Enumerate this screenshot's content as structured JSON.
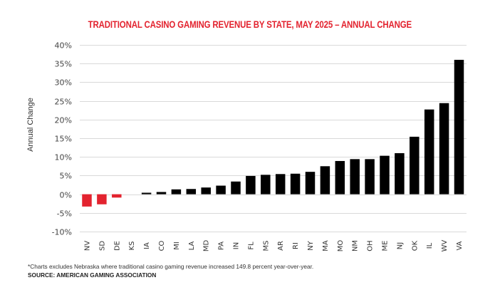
{
  "chart_data": {
    "type": "bar",
    "title": "TRADITIONAL CASINO GAMING REVENUE BY STATE, MAY 2025 – ANNUAL CHANGE",
    "xlabel": "",
    "ylabel": "Annual Change",
    "ylim": [
      -10,
      40
    ],
    "yticks": [
      40,
      35,
      30,
      25,
      20,
      15,
      10,
      5,
      0,
      -5,
      -10
    ],
    "ytick_labels": [
      "40%",
      "35%",
      "30%",
      "25%",
      "20%",
      "15%",
      "10%",
      "5%",
      "0%",
      "-5%",
      "-10%"
    ],
    "grid": true,
    "legend": "none",
    "value_unit": "percent",
    "categories": [
      "NV",
      "SD",
      "DE",
      "KS",
      "IA",
      "CO",
      "MI",
      "LA",
      "MD",
      "PA",
      "IN",
      "FL",
      "MS",
      "AR",
      "RI",
      "NY",
      "MA",
      "MO",
      "NM",
      "OH",
      "ME",
      "NJ",
      "OK",
      "IL",
      "WV",
      "VA"
    ],
    "values": [
      -3.3,
      -2.7,
      -0.9,
      0.0,
      0.4,
      0.6,
      1.3,
      1.4,
      1.8,
      2.3,
      3.4,
      4.9,
      5.2,
      5.4,
      5.5,
      6.0,
      7.5,
      8.9,
      9.4,
      9.4,
      10.3,
      11.0,
      15.4,
      22.7,
      24.4,
      36.0
    ],
    "colors": {
      "positive": "#000000",
      "negative": "#e3232f",
      "title": "#e3232f",
      "grid": "#d9d9d9"
    }
  },
  "footnote": "*Charts excludes Nebraska where traditional casino gaming revenue increased 149.8 percent year-over-year.",
  "source": "SOURCE: AMERICAN GAMING ASSOCIATION"
}
